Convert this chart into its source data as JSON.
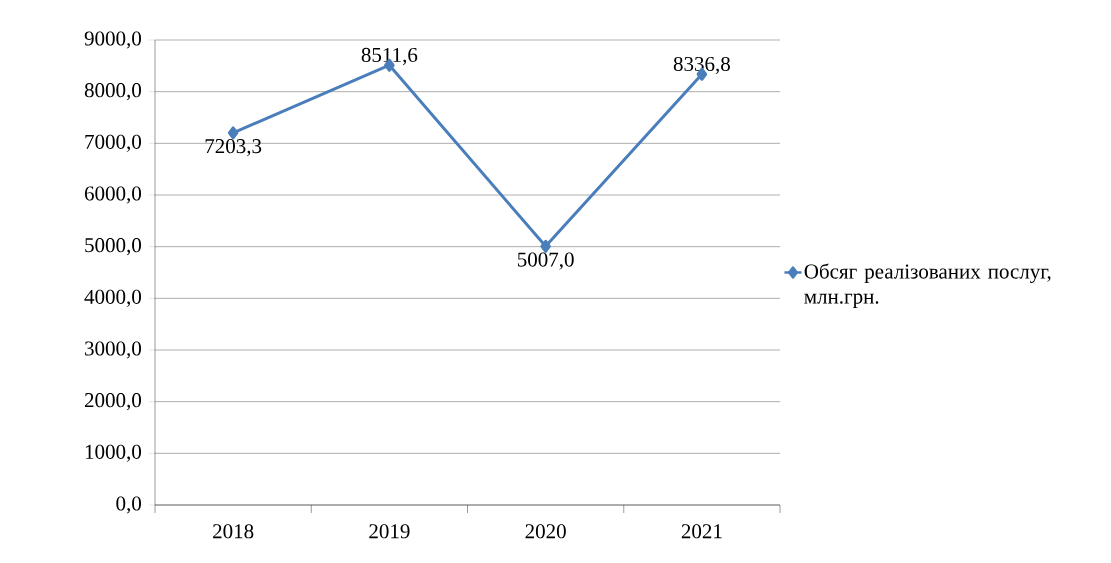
{
  "chart_data": {
    "type": "line",
    "categories": [
      "2018",
      "2019",
      "2020",
      "2021"
    ],
    "series": [
      {
        "name": "Обсяг реалізованих послуг, млн.грн.",
        "color": "#4a7ebb",
        "values": [
          7203.3,
          8511.6,
          5007.0,
          8336.8
        ],
        "value_labels": [
          "7203,3",
          "8511,6",
          "5007,0",
          "8336,8"
        ]
      }
    ],
    "ylim": [
      0,
      9000
    ],
    "yticks": [
      {
        "value": 0,
        "label": "0,0"
      },
      {
        "value": 1000,
        "label": "1000,0"
      },
      {
        "value": 2000,
        "label": "2000,0"
      },
      {
        "value": 3000,
        "label": "3000,0"
      },
      {
        "value": 4000,
        "label": "4000,0"
      },
      {
        "value": 5000,
        "label": "5000,0"
      },
      {
        "value": 6000,
        "label": "6000,0"
      },
      {
        "value": 7000,
        "label": "7000,0"
      },
      {
        "value": 8000,
        "label": "8000,0"
      },
      {
        "value": 9000,
        "label": "9000,0"
      }
    ],
    "grid": "y",
    "legend": "right",
    "marker": "diamond",
    "line_style": "solid"
  }
}
